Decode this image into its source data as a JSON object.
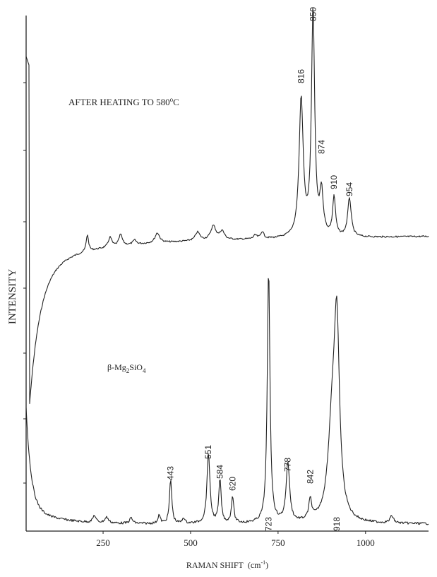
{
  "chart_data": {
    "type": "line",
    "xlabel_main": "RAMAN SHIFT",
    "xlabel_unit": "(cm",
    "xlabel_exp": "-1",
    "xlabel_close": ")",
    "ylabel": "INTENSITY",
    "xlim": [
      30,
      1180
    ],
    "x_ticks": [
      250,
      500,
      750,
      1000
    ],
    "grid": false,
    "series": [
      {
        "label_text": "AFTER HEATING TO 580",
        "label_sup": "o",
        "label_tail": "C",
        "peaks": [
          {
            "x": 816,
            "label": "816"
          },
          {
            "x": 850,
            "label": "850"
          },
          {
            "x": 874,
            "label": "874"
          },
          {
            "x": 910,
            "label": "910"
          },
          {
            "x": 954,
            "label": "954"
          }
        ]
      },
      {
        "label_pre": "β-Mg",
        "label_sub1": "2",
        "label_mid": "SiO",
        "label_sub2": "4",
        "peaks": [
          {
            "x": 443,
            "label": "443"
          },
          {
            "x": 551,
            "label": "551"
          },
          {
            "x": 584,
            "label": "584"
          },
          {
            "x": 620,
            "label": "620"
          },
          {
            "x": 723,
            "label": "723"
          },
          {
            "x": 778,
            "label": "778"
          },
          {
            "x": 842,
            "label": "842"
          },
          {
            "x": 918,
            "label": "918"
          }
        ]
      }
    ]
  }
}
